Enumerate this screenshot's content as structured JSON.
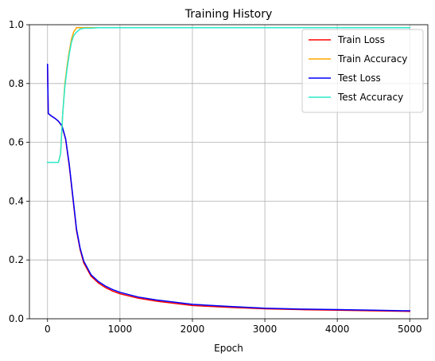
{
  "chart_data": {
    "type": "line",
    "title": "Training History",
    "xlabel": "Epoch",
    "ylabel": "",
    "xlim": [
      -250,
      5250
    ],
    "ylim": [
      0,
      1
    ],
    "grid": true,
    "legend_position": "top-right",
    "x_ticks": [
      0,
      1000,
      2000,
      3000,
      4000,
      5000
    ],
    "y_ticks": [
      0.0,
      0.2,
      0.4,
      0.6,
      0.8,
      1.0
    ],
    "x_tick_labels": [
      "0",
      "1000",
      "2000",
      "3000",
      "4000",
      "5000"
    ],
    "y_tick_labels": [
      "0.0",
      "0.2",
      "0.4",
      "0.6",
      "0.8",
      "1.0"
    ],
    "series": [
      {
        "name": "Train Loss",
        "color": "#ff0000",
        "x": [
          0,
          10,
          50,
          100,
          150,
          200,
          250,
          300,
          350,
          400,
          450,
          500,
          600,
          700,
          800,
          900,
          1000,
          1250,
          1500,
          2000,
          2500,
          3000,
          3500,
          4000,
          4500,
          5000
        ],
        "y": [
          0.865,
          0.698,
          0.69,
          0.682,
          0.672,
          0.655,
          0.61,
          0.52,
          0.41,
          0.3,
          0.235,
          0.19,
          0.145,
          0.122,
          0.106,
          0.094,
          0.085,
          0.07,
          0.06,
          0.045,
          0.039,
          0.034,
          0.031,
          0.029,
          0.027,
          0.025
        ]
      },
      {
        "name": "Train Accuracy",
        "color": "#ffa500",
        "x": [
          0,
          150,
          180,
          210,
          240,
          270,
          300,
          330,
          360,
          400,
          450,
          500,
          5000
        ],
        "y": [
          0.532,
          0.532,
          0.56,
          0.7,
          0.8,
          0.86,
          0.91,
          0.95,
          0.975,
          0.99,
          0.99,
          0.99,
          0.99
        ]
      },
      {
        "name": "Test Loss",
        "color": "#0000ff",
        "x": [
          0,
          10,
          50,
          100,
          150,
          200,
          250,
          300,
          350,
          400,
          450,
          500,
          600,
          700,
          800,
          900,
          1000,
          1250,
          1500,
          2000,
          2500,
          3000,
          3500,
          4000,
          4500,
          5000
        ],
        "y": [
          0.865,
          0.698,
          0.69,
          0.682,
          0.672,
          0.656,
          0.612,
          0.525,
          0.415,
          0.305,
          0.24,
          0.196,
          0.15,
          0.127,
          0.111,
          0.099,
          0.09,
          0.074,
          0.064,
          0.049,
          0.042,
          0.036,
          0.033,
          0.031,
          0.029,
          0.027
        ]
      },
      {
        "name": "Test Accuracy",
        "color": "#2aeacc",
        "x": [
          0,
          150,
          180,
          210,
          240,
          270,
          300,
          330,
          360,
          400,
          450,
          500,
          600,
          700,
          750,
          800,
          5000
        ],
        "y": [
          0.532,
          0.532,
          0.56,
          0.7,
          0.79,
          0.85,
          0.9,
          0.94,
          0.962,
          0.975,
          0.985,
          0.988,
          0.988,
          0.99,
          0.99,
          0.99,
          0.99
        ]
      }
    ]
  }
}
